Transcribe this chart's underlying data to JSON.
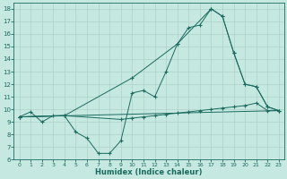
{
  "xlabel": "Humidex (Indice chaleur)",
  "bg_color": "#c5e8e0",
  "line_color": "#1a6b60",
  "grid_color": "#aed0c8",
  "xlim": [
    -0.5,
    23.5
  ],
  "ylim": [
    6,
    18.5
  ],
  "xticks": [
    0,
    1,
    2,
    3,
    4,
    5,
    6,
    7,
    8,
    9,
    10,
    11,
    12,
    13,
    14,
    15,
    16,
    17,
    18,
    19,
    20,
    21,
    22,
    23
  ],
  "yticks": [
    6,
    7,
    8,
    9,
    10,
    11,
    12,
    13,
    14,
    15,
    16,
    17,
    18
  ],
  "line1_x": [
    0,
    1,
    2,
    3,
    4,
    5,
    6,
    7,
    8,
    9,
    10,
    11,
    12,
    13,
    14,
    15,
    16,
    17,
    18,
    19,
    20,
    21,
    22,
    23
  ],
  "line1_y": [
    9.4,
    9.8,
    9.0,
    9.5,
    9.5,
    8.2,
    7.7,
    6.5,
    6.5,
    7.5,
    11.3,
    11.5,
    11.0,
    13.0,
    15.2,
    16.5,
    16.7,
    18.0,
    17.4,
    14.5,
    12.0,
    11.8,
    10.2,
    9.9
  ],
  "line2_x": [
    0,
    4,
    10,
    14,
    17,
    18,
    19,
    20,
    21,
    22,
    23
  ],
  "line2_y": [
    9.4,
    9.5,
    12.5,
    15.2,
    18.0,
    17.4,
    14.5,
    12.0,
    11.8,
    10.2,
    9.9
  ],
  "line3_x": [
    0,
    23
  ],
  "line3_y": [
    9.4,
    9.9
  ],
  "line4_x": [
    0,
    4,
    9,
    10,
    11,
    12,
    13,
    14,
    15,
    16,
    17,
    18,
    19,
    20,
    21,
    22,
    23
  ],
  "line4_y": [
    9.4,
    9.5,
    9.2,
    9.3,
    9.4,
    9.5,
    9.6,
    9.7,
    9.8,
    9.9,
    10.0,
    10.1,
    10.2,
    10.3,
    10.5,
    9.9,
    9.9
  ]
}
